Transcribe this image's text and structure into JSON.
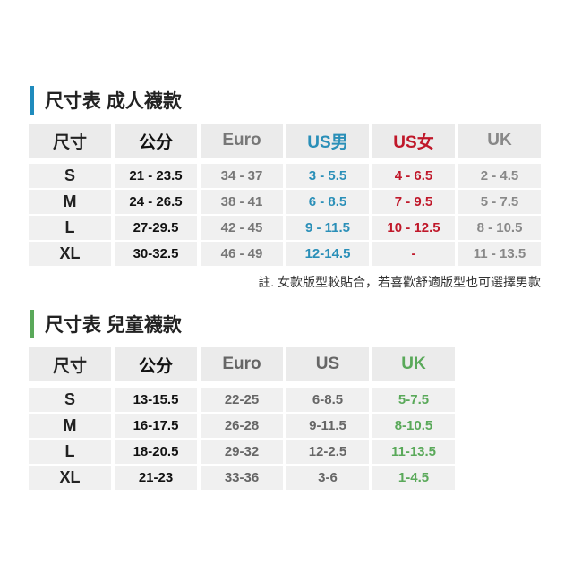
{
  "adult": {
    "title": "尺寸表 成人襪款",
    "accent": "#1f8bbd",
    "headers": [
      "尺寸",
      "公分",
      "Euro",
      "US男",
      "US女",
      "UK"
    ],
    "column_colors": [
      "#222222",
      "#111111",
      "#777777",
      "#2a8fb8",
      "#c0182a",
      "#888888"
    ],
    "rows": [
      [
        "S",
        "21 - 23.5",
        "34 - 37",
        "3 - 5.5",
        "4 - 6.5",
        "2 - 4.5"
      ],
      [
        "M",
        "24 - 26.5",
        "38 - 41",
        "6 - 8.5",
        "7 - 9.5",
        "5 - 7.5"
      ],
      [
        "L",
        "27-29.5",
        "42 - 45",
        "9 - 11.5",
        "10 - 12.5",
        "8 - 10.5"
      ],
      [
        "XL",
        "30-32.5",
        "46 - 49",
        "12-14.5",
        "-",
        "11 - 13.5"
      ]
    ],
    "note": "註. 女款版型較貼合，若喜歡舒適版型也可選擇男款"
  },
  "kids": {
    "title": "尺寸表 兒童襪款",
    "accent": "#5aa95a",
    "headers": [
      "尺寸",
      "公分",
      "Euro",
      "US",
      "UK"
    ],
    "column_colors": [
      "#222222",
      "#111111",
      "#666666",
      "#666666",
      "#5aa95a"
    ],
    "rows": [
      [
        "S",
        "13-15.5",
        "22-25",
        "6-8.5",
        "5-7.5"
      ],
      [
        "M",
        "16-17.5",
        "26-28",
        "9-11.5",
        "8-10.5"
      ],
      [
        "L",
        "18-20.5",
        "29-32",
        "12-2.5",
        "11-13.5"
      ],
      [
        "XL",
        "21-23",
        "33-36",
        "3-6",
        "1-4.5"
      ]
    ]
  }
}
